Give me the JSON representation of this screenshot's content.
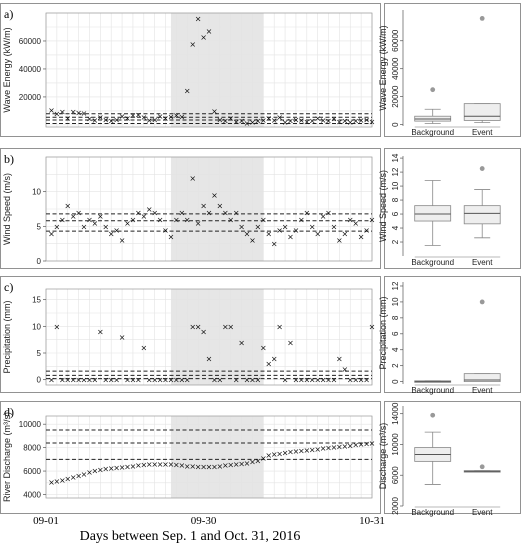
{
  "x_axis": {
    "title": "Days between Sep. 1 and Oct. 31, 2016",
    "ticks": [
      {
        "day": 0,
        "label": "09-01"
      },
      {
        "day": 29,
        "label": "09-30"
      },
      {
        "day": 60,
        "label": "10-31"
      }
    ]
  },
  "colors": {
    "event_shading": "#e6e6e6",
    "box_fill": "#eeeeee",
    "outlier": "#999999"
  },
  "chart_data": [
    {
      "type": "scatter",
      "panel": "a)",
      "ylabel": "Wave Energy (kW/m)",
      "ylim": [
        -1500,
        80000
      ],
      "yticks": [
        20000,
        40000,
        60000
      ],
      "event_window": [
        23,
        40
      ],
      "thresholds": [
        1000,
        3500,
        5500,
        8000
      ],
      "points": [
        [
          1,
          10500
        ],
        [
          2,
          8000
        ],
        [
          3,
          9500
        ],
        [
          4,
          5000
        ],
        [
          5,
          9500
        ],
        [
          6,
          9000
        ],
        [
          7,
          8500
        ],
        [
          8,
          4500
        ],
        [
          9,
          3500
        ],
        [
          10,
          5500
        ],
        [
          11,
          4000
        ],
        [
          12,
          3000
        ],
        [
          13,
          4000
        ],
        [
          14,
          6500
        ],
        [
          15,
          5000
        ],
        [
          16,
          7000
        ],
        [
          17,
          7500
        ],
        [
          18,
          5500
        ],
        [
          19,
          3500
        ],
        [
          20,
          4000
        ],
        [
          21,
          6500
        ],
        [
          22,
          5000
        ],
        [
          23,
          6000
        ],
        [
          24,
          7000
        ],
        [
          25,
          6000
        ],
        [
          26,
          24500
        ],
        [
          27,
          58000
        ],
        [
          28,
          76000
        ],
        [
          29,
          63000
        ],
        [
          30,
          67000
        ],
        [
          31,
          10000
        ],
        [
          32,
          4000
        ],
        [
          33,
          3000
        ],
        [
          34,
          5000
        ],
        [
          35,
          2500
        ],
        [
          36,
          3000
        ],
        [
          37,
          1500
        ],
        [
          38,
          2000
        ],
        [
          39,
          3000
        ],
        [
          40,
          3500
        ],
        [
          41,
          5000
        ],
        [
          42,
          3500
        ],
        [
          43,
          5500
        ],
        [
          44,
          2000
        ],
        [
          45,
          3000
        ],
        [
          46,
          4000
        ],
        [
          47,
          3500
        ],
        [
          48,
          2500
        ],
        [
          49,
          3000
        ],
        [
          50,
          5000
        ],
        [
          51,
          3500
        ],
        [
          52,
          3000
        ],
        [
          53,
          4500
        ],
        [
          54,
          2500
        ],
        [
          55,
          3000
        ],
        [
          56,
          2000
        ],
        [
          57,
          3000
        ],
        [
          58,
          3500
        ],
        [
          59,
          4000
        ],
        [
          60,
          2500
        ]
      ],
      "boxplot": {
        "ylim": [
          -1000,
          82000
        ],
        "yticks": [
          0,
          20000,
          40000,
          60000
        ],
        "ylabel": "Wave Energy (kW/m)",
        "groups": [
          {
            "name": "Background",
            "whisker_low": 800,
            "q1": 2500,
            "median": 4000,
            "q3": 6000,
            "whisker_high": 11000,
            "outliers": [
              25000
            ]
          },
          {
            "name": "Event",
            "whisker_low": 1500,
            "q1": 3000,
            "median": 6000,
            "q3": 15000,
            "whisker_high": 15000,
            "outliers": [
              76000
            ]
          }
        ]
      }
    },
    {
      "type": "scatter",
      "panel": "b)",
      "ylabel": "Wind Speed (m/s)",
      "ylim": [
        0,
        15
      ],
      "yticks": [
        0,
        5,
        10
      ],
      "event_window": [
        23,
        40
      ],
      "thresholds": [
        4.3,
        5.8,
        6.8
      ],
      "points": [
        [
          1,
          4
        ],
        [
          2,
          5
        ],
        [
          3,
          6
        ],
        [
          4,
          8
        ],
        [
          5,
          6.5
        ],
        [
          6,
          7
        ],
        [
          7,
          5
        ],
        [
          8,
          6
        ],
        [
          9,
          5.5
        ],
        [
          10,
          6.5
        ],
        [
          11,
          5
        ],
        [
          12,
          4
        ],
        [
          13,
          4.5
        ],
        [
          14,
          3
        ],
        [
          15,
          5.5
        ],
        [
          16,
          6
        ],
        [
          17,
          7
        ],
        [
          18,
          6.5
        ],
        [
          19,
          7.5
        ],
        [
          20,
          7
        ],
        [
          21,
          6
        ],
        [
          22,
          4.5
        ],
        [
          23,
          3.5
        ],
        [
          24,
          6
        ],
        [
          25,
          7
        ],
        [
          26,
          6
        ],
        [
          27,
          12
        ],
        [
          28,
          5.5
        ],
        [
          29,
          8
        ],
        [
          30,
          7
        ],
        [
          31,
          9.5
        ],
        [
          32,
          8
        ],
        [
          33,
          7
        ],
        [
          34,
          6
        ],
        [
          35,
          7
        ],
        [
          36,
          5
        ],
        [
          37,
          4
        ],
        [
          38,
          3
        ],
        [
          39,
          5
        ],
        [
          40,
          6
        ],
        [
          41,
          4
        ],
        [
          42,
          2.5
        ],
        [
          43,
          4.5
        ],
        [
          44,
          5
        ],
        [
          45,
          3.5
        ],
        [
          46,
          4.5
        ],
        [
          47,
          6
        ],
        [
          48,
          7
        ],
        [
          49,
          5
        ],
        [
          50,
          4
        ],
        [
          51,
          6.5
        ],
        [
          52,
          7
        ],
        [
          53,
          5
        ],
        [
          54,
          3
        ],
        [
          55,
          4
        ],
        [
          56,
          6
        ],
        [
          57,
          5.5
        ],
        [
          58,
          3.5
        ],
        [
          59,
          4.5
        ],
        [
          60,
          6
        ]
      ],
      "boxplot": {
        "ylim": [
          0,
          14.3
        ],
        "yticks": [
          2,
          4,
          6,
          8,
          10,
          12,
          14
        ],
        "ylabel": "Wind Speed (m/s)",
        "groups": [
          {
            "name": "Background",
            "whisker_low": 1.5,
            "q1": 5.0,
            "median": 6.0,
            "q3": 7.2,
            "whisker_high": 10.8,
            "outliers": []
          },
          {
            "name": "Event",
            "whisker_low": 2.6,
            "q1": 4.6,
            "median": 6.1,
            "q3": 7.2,
            "whisker_high": 9.5,
            "outliers": [
              12.5
            ]
          }
        ]
      }
    },
    {
      "type": "scatter",
      "panel": "c)",
      "ylabel": "Precipitation (mm)",
      "ylim": [
        -1,
        17
      ],
      "yticks": [
        0,
        5,
        10,
        15
      ],
      "event_window": [
        23,
        40
      ],
      "thresholds": [
        0.2,
        0.8,
        1.6
      ],
      "points": [
        [
          1,
          0
        ],
        [
          2,
          10
        ],
        [
          3,
          0
        ],
        [
          4,
          0
        ],
        [
          5,
          0
        ],
        [
          6,
          0
        ],
        [
          7,
          0
        ],
        [
          8,
          0
        ],
        [
          9,
          0
        ],
        [
          10,
          9
        ],
        [
          11,
          0
        ],
        [
          12,
          0
        ],
        [
          13,
          0
        ],
        [
          14,
          8
        ],
        [
          15,
          0
        ],
        [
          16,
          0
        ],
        [
          17,
          0
        ],
        [
          18,
          6
        ],
        [
          19,
          0
        ],
        [
          20,
          0
        ],
        [
          21,
          0
        ],
        [
          22,
          0
        ],
        [
          23,
          0
        ],
        [
          24,
          0
        ],
        [
          25,
          0
        ],
        [
          26,
          0
        ],
        [
          27,
          10
        ],
        [
          28,
          10
        ],
        [
          29,
          9
        ],
        [
          30,
          4
        ],
        [
          31,
          0
        ],
        [
          32,
          0
        ],
        [
          33,
          10
        ],
        [
          34,
          10
        ],
        [
          35,
          0
        ],
        [
          36,
          7
        ],
        [
          37,
          0
        ],
        [
          38,
          0
        ],
        [
          39,
          0
        ],
        [
          40,
          6
        ],
        [
          41,
          3
        ],
        [
          42,
          4
        ],
        [
          43,
          10
        ],
        [
          44,
          0
        ],
        [
          45,
          7
        ],
        [
          46,
          0
        ],
        [
          47,
          0
        ],
        [
          48,
          0
        ],
        [
          49,
          0
        ],
        [
          50,
          0
        ],
        [
          51,
          0
        ],
        [
          52,
          0
        ],
        [
          53,
          0
        ],
        [
          54,
          4
        ],
        [
          55,
          2
        ],
        [
          56,
          0
        ],
        [
          57,
          0
        ],
        [
          58,
          0
        ],
        [
          59,
          0
        ],
        [
          60,
          10
        ]
      ],
      "boxplot": {
        "ylim": [
          -0.3,
          12.5
        ],
        "yticks": [
          0,
          2,
          4,
          6,
          8,
          10,
          12
        ],
        "ylabel": "Precipitation (mm)",
        "groups": [
          {
            "name": "Background",
            "whisker_low": 0,
            "q1": 0,
            "median": 0,
            "q3": 0.1,
            "whisker_high": 0.1,
            "outliers": []
          },
          {
            "name": "Event",
            "whisker_low": 0,
            "q1": 0,
            "median": 0.2,
            "q3": 1.0,
            "whisker_high": 1.0,
            "outliers": [
              10
            ]
          }
        ]
      }
    },
    {
      "type": "scatter",
      "panel": "d)",
      "ylabel": "River Discharge (m³/s)",
      "ylim": [
        3700,
        10700
      ],
      "yticks": [
        4000,
        6000,
        8000,
        10000
      ],
      "event_window": [
        23,
        40
      ],
      "thresholds": [
        7000,
        8400,
        9500
      ],
      "points": [
        [
          1,
          5050
        ],
        [
          2,
          5150
        ],
        [
          3,
          5250
        ],
        [
          4,
          5350
        ],
        [
          5,
          5500
        ],
        [
          6,
          5600
        ],
        [
          7,
          5750
        ],
        [
          8,
          5900
        ],
        [
          9,
          6050
        ],
        [
          10,
          6150
        ],
        [
          11,
          6200
        ],
        [
          12,
          6250
        ],
        [
          13,
          6300
        ],
        [
          14,
          6350
        ],
        [
          15,
          6400
        ],
        [
          16,
          6450
        ],
        [
          17,
          6500
        ],
        [
          18,
          6550
        ],
        [
          19,
          6600
        ],
        [
          20,
          6600
        ],
        [
          21,
          6600
        ],
        [
          22,
          6600
        ],
        [
          23,
          6600
        ],
        [
          24,
          6550
        ],
        [
          25,
          6500
        ],
        [
          26,
          6450
        ],
        [
          27,
          6450
        ],
        [
          28,
          6400
        ],
        [
          29,
          6400
        ],
        [
          30,
          6400
        ],
        [
          31,
          6400
        ],
        [
          32,
          6450
        ],
        [
          33,
          6500
        ],
        [
          34,
          6550
        ],
        [
          35,
          6600
        ],
        [
          36,
          6650
        ],
        [
          37,
          6700
        ],
        [
          38,
          6800
        ],
        [
          39,
          6900
        ],
        [
          40,
          7100
        ],
        [
          41,
          7350
        ],
        [
          42,
          7450
        ],
        [
          43,
          7500
        ],
        [
          44,
          7600
        ],
        [
          45,
          7650
        ],
        [
          46,
          7700
        ],
        [
          47,
          7750
        ],
        [
          48,
          7800
        ],
        [
          49,
          7850
        ],
        [
          50,
          7900
        ],
        [
          51,
          7950
        ],
        [
          52,
          8000
        ],
        [
          53,
          8050
        ],
        [
          54,
          8100
        ],
        [
          55,
          8150
        ],
        [
          56,
          8200
        ],
        [
          57,
          8250
        ],
        [
          58,
          8300
        ],
        [
          59,
          8350
        ],
        [
          60,
          8400
        ]
      ],
      "boxplot": {
        "ylim": [
          2000,
          15000
        ],
        "yticks": [
          2000,
          6000,
          10000,
          14000
        ],
        "ylabel": "Discharge (m³/s)",
        "groups": [
          {
            "name": "Background",
            "whisker_low": 4800,
            "q1": 7800,
            "median": 8700,
            "q3": 9600,
            "whisker_high": 11600,
            "outliers": [
              13800
            ]
          },
          {
            "name": "Event",
            "whisker_low": 6400,
            "q1": 6400,
            "median": 6500,
            "q3": 6600,
            "whisker_high": 6600,
            "outliers": [
              7100
            ]
          }
        ]
      }
    }
  ]
}
